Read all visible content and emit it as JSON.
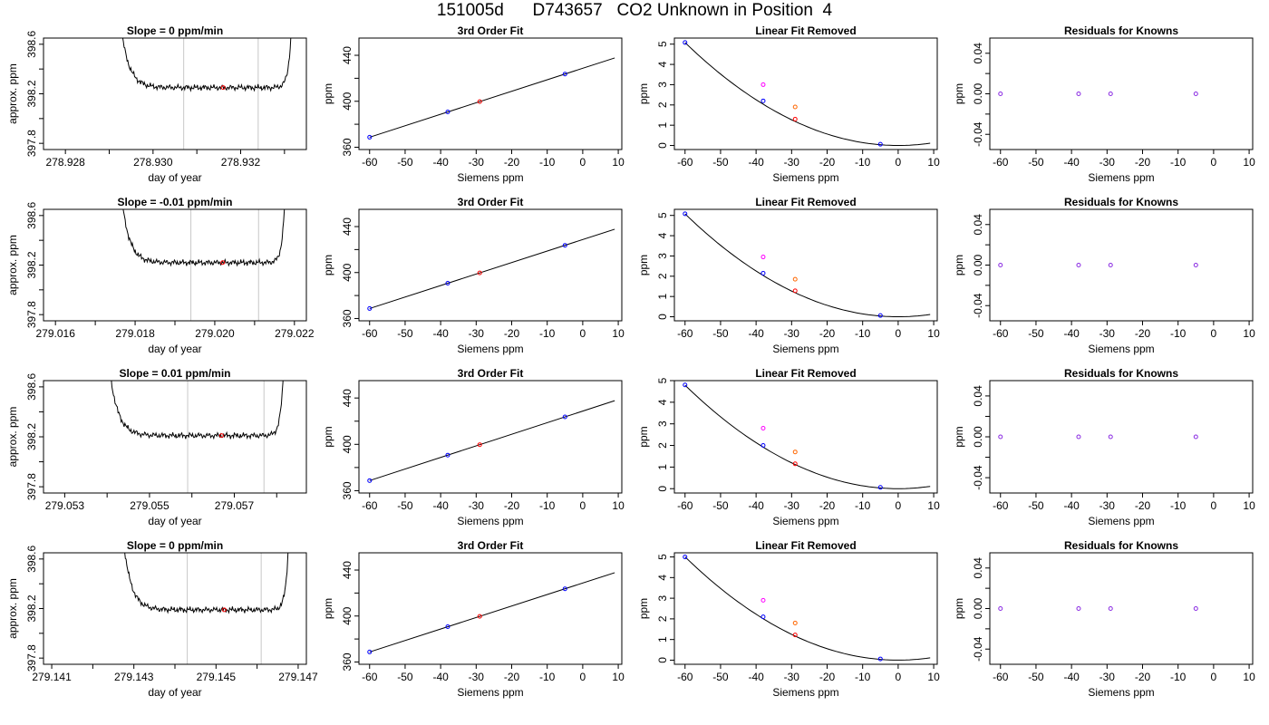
{
  "title": {
    "run": "151005d",
    "tank": "D743657",
    "desc": "CO2 Unknown in Position  4"
  },
  "colors": {
    "trace": "#000000",
    "window": "#c8c8c8",
    "highlight": "#ff0000",
    "standard": "#0000ff",
    "unknown": "#ff0000",
    "raw_unknown": "#ff00ff",
    "raw_known": "#ff6600",
    "residual": "#8a2be2"
  },
  "chart_data": [
    {
      "type": "line",
      "title": "Slope =  0  ppm/min",
      "xlabel": "day of year",
      "ylabel": "approx. ppm",
      "xlim": [
        278.9275,
        278.9335
      ],
      "ylim": [
        397.75,
        398.65
      ],
      "xticks": [
        278.928,
        278.929,
        278.93,
        278.931,
        278.932,
        278.933
      ],
      "xtick_labels": [
        "278.928",
        "",
        "278.930",
        "",
        "278.932",
        ""
      ],
      "yticks": [
        397.8,
        398.0,
        398.2,
        398.4,
        398.6
      ],
      "ytick_labels": [
        "397.8",
        "",
        "398.2",
        "",
        "398.6"
      ],
      "plateau": 398.25,
      "rise": [
        278.9291,
        278.9332
      ],
      "window": [
        278.9307,
        278.9324
      ],
      "highlight": {
        "x": 278.9316,
        "y": 398.25
      }
    },
    {
      "type": "scatter",
      "title": "3rd Order Fit",
      "xlabel": "Siemens ppm",
      "ylabel": "ppm",
      "xlim": [
        -63,
        11
      ],
      "ylim": [
        358,
        455
      ],
      "xticks": [
        -60,
        -50,
        -40,
        -30,
        -20,
        -10,
        0,
        10
      ],
      "yticks": [
        360,
        380,
        400,
        420,
        440
      ],
      "ytick_labels": [
        "360",
        "",
        "400",
        "",
        "440"
      ],
      "fit": {
        "slope": 1.0,
        "intercept": 428.7,
        "x_range": [
          -60,
          9
        ]
      },
      "standards": [
        {
          "x": -60,
          "y": 368.7
        },
        {
          "x": -38,
          "y": 390.7
        },
        {
          "x": -5,
          "y": 423.7
        }
      ],
      "unknown": {
        "x": -29,
        "y": 399.7
      }
    },
    {
      "type": "scatter",
      "title": "Linear Fit Removed",
      "xlabel": "Siemens ppm",
      "ylabel": "ppm",
      "xlim": [
        -63,
        11
      ],
      "ylim": [
        -0.2,
        5.3
      ],
      "xticks": [
        -60,
        -50,
        -40,
        -30,
        -20,
        -10,
        0,
        10
      ],
      "yticks": [
        0,
        1,
        2,
        3,
        4,
        5
      ],
      "curve": {
        "a": 0.00141,
        "x_range": [
          -60,
          9
        ]
      },
      "standards": [
        {
          "x": -60,
          "y": 5.08
        },
        {
          "x": -38,
          "y": 2.2
        },
        {
          "x": -5,
          "y": 0.06
        }
      ],
      "unknown": {
        "x": -29,
        "y": 1.3
      },
      "raw_unknown": {
        "x": -38,
        "y": 3.0
      },
      "raw_known": {
        "x": -29,
        "y": 1.9
      }
    },
    {
      "type": "scatter",
      "title": "Residuals for Knowns",
      "xlabel": "Siemens ppm",
      "ylabel": "ppm",
      "xlim": [
        -63,
        11
      ],
      "ylim": [
        -0.055,
        0.055
      ],
      "xticks": [
        -60,
        -50,
        -40,
        -30,
        -20,
        -10,
        0,
        10
      ],
      "yticks": [
        -0.04,
        -0.02,
        0,
        0.02,
        0.04
      ],
      "ytick_labels": [
        "-0.04",
        "",
        "0.00",
        "",
        "0.04"
      ],
      "points": [
        {
          "x": -60,
          "y": 0
        },
        {
          "x": -38,
          "y": 0
        },
        {
          "x": -29,
          "y": 0
        },
        {
          "x": -5,
          "y": 0
        }
      ]
    },
    {
      "type": "line",
      "title": "Slope =  -0.01  ppm/min",
      "xlabel": "day of year",
      "ylabel": "approx. ppm",
      "xlim": [
        279.0157,
        279.0223
      ],
      "ylim": [
        397.75,
        398.65
      ],
      "xticks": [
        279.016,
        279.017,
        279.018,
        279.019,
        279.02,
        279.021,
        279.022
      ],
      "xtick_labels": [
        "279.016",
        "",
        "279.018",
        "",
        "279.020",
        "",
        "279.022"
      ],
      "yticks": [
        397.8,
        398.0,
        398.2,
        398.4,
        398.6
      ],
      "ytick_labels": [
        "397.8",
        "",
        "398.2",
        "",
        "398.6"
      ],
      "plateau": 398.22,
      "rise": [
        279.0175,
        279.0218
      ],
      "window": [
        279.0194,
        279.0211
      ],
      "highlight": {
        "x": 279.0202,
        "y": 398.22
      }
    },
    {
      "type": "scatter",
      "title": "3rd Order Fit",
      "xlabel": "Siemens ppm",
      "ylabel": "ppm",
      "xlim": [
        -63,
        11
      ],
      "ylim": [
        358,
        455
      ],
      "xticks": [
        -60,
        -50,
        -40,
        -30,
        -20,
        -10,
        0,
        10
      ],
      "yticks": [
        360,
        380,
        400,
        420,
        440
      ],
      "ytick_labels": [
        "360",
        "",
        "400",
        "",
        "440"
      ],
      "fit": {
        "slope": 1.0,
        "intercept": 428.7,
        "x_range": [
          -60,
          9
        ]
      },
      "standards": [
        {
          "x": -60,
          "y": 368.7
        },
        {
          "x": -38,
          "y": 390.7
        },
        {
          "x": -5,
          "y": 423.7
        }
      ],
      "unknown": {
        "x": -29,
        "y": 399.7
      }
    },
    {
      "type": "scatter",
      "title": "Linear Fit Removed",
      "xlabel": "Siemens ppm",
      "ylabel": "ppm",
      "xlim": [
        -63,
        11
      ],
      "ylim": [
        -0.2,
        5.3
      ],
      "xticks": [
        -60,
        -50,
        -40,
        -30,
        -20,
        -10,
        0,
        10
      ],
      "yticks": [
        0,
        1,
        2,
        3,
        4,
        5
      ],
      "curve": {
        "a": 0.00141,
        "x_range": [
          -60,
          9
        ]
      },
      "standards": [
        {
          "x": -60,
          "y": 5.08
        },
        {
          "x": -38,
          "y": 2.15
        },
        {
          "x": -5,
          "y": 0.06
        }
      ],
      "unknown": {
        "x": -29,
        "y": 1.28
      },
      "raw_unknown": {
        "x": -38,
        "y": 2.95
      },
      "raw_known": {
        "x": -29,
        "y": 1.85
      }
    },
    {
      "type": "scatter",
      "title": "Residuals for Knowns",
      "xlabel": "Siemens ppm",
      "ylabel": "ppm",
      "xlim": [
        -63,
        11
      ],
      "ylim": [
        -0.055,
        0.055
      ],
      "xticks": [
        -60,
        -50,
        -40,
        -30,
        -20,
        -10,
        0,
        10
      ],
      "yticks": [
        -0.04,
        -0.02,
        0,
        0.02,
        0.04
      ],
      "ytick_labels": [
        "-0.04",
        "",
        "0.00",
        "",
        "0.04"
      ],
      "points": [
        {
          "x": -60,
          "y": 0
        },
        {
          "x": -38,
          "y": 0
        },
        {
          "x": -29,
          "y": 0
        },
        {
          "x": -5,
          "y": 0
        }
      ]
    },
    {
      "type": "line",
      "title": "Slope =  0.01  ppm/min",
      "xlabel": "day of year",
      "ylabel": "approx. ppm",
      "xlim": [
        279.0525,
        279.0587
      ],
      "ylim": [
        397.75,
        398.65
      ],
      "xticks": [
        279.053,
        279.054,
        279.055,
        279.056,
        279.057,
        279.058
      ],
      "xtick_labels": [
        "279.053",
        "",
        "279.055",
        "",
        "279.057",
        ""
      ],
      "yticks": [
        397.8,
        398.0,
        398.2,
        398.4,
        398.6
      ],
      "ytick_labels": [
        "397.8",
        "",
        "398.2",
        "",
        "398.6"
      ],
      "plateau": 398.21,
      "rise": [
        279.0539,
        279.0582
      ],
      "window": [
        279.0559,
        279.0577
      ],
      "highlight": {
        "x": 279.0567,
        "y": 398.21
      }
    },
    {
      "type": "scatter",
      "title": "3rd Order Fit",
      "xlabel": "Siemens ppm",
      "ylabel": "ppm",
      "xlim": [
        -63,
        11
      ],
      "ylim": [
        358,
        455
      ],
      "xticks": [
        -60,
        -50,
        -40,
        -30,
        -20,
        -10,
        0,
        10
      ],
      "yticks": [
        360,
        380,
        400,
        420,
        440
      ],
      "ytick_labels": [
        "360",
        "",
        "400",
        "",
        "440"
      ],
      "fit": {
        "slope": 1.0,
        "intercept": 428.7,
        "x_range": [
          -60,
          9
        ]
      },
      "standards": [
        {
          "x": -60,
          "y": 368.7
        },
        {
          "x": -38,
          "y": 390.7
        },
        {
          "x": -5,
          "y": 423.7
        }
      ],
      "unknown": {
        "x": -29,
        "y": 399.7
      }
    },
    {
      "type": "scatter",
      "title": "Linear Fit Removed",
      "xlabel": "Siemens ppm",
      "ylabel": "ppm",
      "xlim": [
        -63,
        11
      ],
      "ylim": [
        -0.2,
        5.0
      ],
      "xticks": [
        -60,
        -50,
        -40,
        -30,
        -20,
        -10,
        0,
        10
      ],
      "yticks": [
        0,
        1,
        2,
        3,
        4,
        5
      ],
      "curve": {
        "a": 0.00133,
        "x_range": [
          -60,
          9
        ]
      },
      "standards": [
        {
          "x": -60,
          "y": 4.8
        },
        {
          "x": -38,
          "y": 2.0
        },
        {
          "x": -5,
          "y": 0.06
        }
      ],
      "unknown": {
        "x": -29,
        "y": 1.15
      },
      "raw_unknown": {
        "x": -38,
        "y": 2.8
      },
      "raw_known": {
        "x": -29,
        "y": 1.7
      }
    },
    {
      "type": "scatter",
      "title": "Residuals for Knowns",
      "xlabel": "Siemens ppm",
      "ylabel": "ppm",
      "xlim": [
        -63,
        11
      ],
      "ylim": [
        -0.055,
        0.055
      ],
      "xticks": [
        -60,
        -50,
        -40,
        -30,
        -20,
        -10,
        0,
        10
      ],
      "yticks": [
        -0.04,
        -0.02,
        0,
        0.02,
        0.04
      ],
      "ytick_labels": [
        "-0.04",
        "",
        "0.00",
        "",
        "0.04"
      ],
      "points": [
        {
          "x": -60,
          "y": 0
        },
        {
          "x": -38,
          "y": 0
        },
        {
          "x": -29,
          "y": 0
        },
        {
          "x": -5,
          "y": 0
        }
      ]
    },
    {
      "type": "line",
      "title": "Slope =  0  ppm/min",
      "xlabel": "day of year",
      "ylabel": "approx. ppm",
      "xlim": [
        279.1408,
        279.1472
      ],
      "ylim": [
        397.75,
        398.65
      ],
      "xticks": [
        279.141,
        279.142,
        279.143,
        279.144,
        279.145,
        279.146,
        279.147
      ],
      "xtick_labels": [
        "279.141",
        "",
        "279.143",
        "",
        "279.145",
        "",
        "279.147"
      ],
      "yticks": [
        397.8,
        398.0,
        398.2,
        398.4,
        398.6
      ],
      "ytick_labels": [
        "397.8",
        "",
        "398.2",
        "",
        "398.6"
      ],
      "plateau": 398.19,
      "rise": [
        279.1426,
        279.1468
      ],
      "window": [
        279.1443,
        279.1461
      ],
      "highlight": {
        "x": 279.1452,
        "y": 398.19
      }
    },
    {
      "type": "scatter",
      "title": "3rd Order Fit",
      "xlabel": "Siemens ppm",
      "ylabel": "ppm",
      "xlim": [
        -63,
        11
      ],
      "ylim": [
        358,
        455
      ],
      "xticks": [
        -60,
        -50,
        -40,
        -30,
        -20,
        -10,
        0,
        10
      ],
      "yticks": [
        360,
        380,
        400,
        420,
        440
      ],
      "ytick_labels": [
        "360",
        "",
        "400",
        "",
        "440"
      ],
      "fit": {
        "slope": 1.0,
        "intercept": 428.7,
        "x_range": [
          -60,
          9
        ]
      },
      "standards": [
        {
          "x": -60,
          "y": 368.7
        },
        {
          "x": -38,
          "y": 390.7
        },
        {
          "x": -5,
          "y": 423.7
        }
      ],
      "unknown": {
        "x": -29,
        "y": 399.7
      }
    },
    {
      "type": "scatter",
      "title": "Linear Fit Removed",
      "xlabel": "Siemens ppm",
      "ylabel": "ppm",
      "xlim": [
        -63,
        11
      ],
      "ylim": [
        -0.2,
        5.2
      ],
      "xticks": [
        -60,
        -50,
        -40,
        -30,
        -20,
        -10,
        0,
        10
      ],
      "yticks": [
        0,
        1,
        2,
        3,
        4,
        5
      ],
      "curve": {
        "a": 0.00139,
        "x_range": [
          -60,
          9
        ]
      },
      "standards": [
        {
          "x": -60,
          "y": 5.0
        },
        {
          "x": -38,
          "y": 2.1
        },
        {
          "x": -5,
          "y": 0.06
        }
      ],
      "unknown": {
        "x": -29,
        "y": 1.22
      },
      "raw_unknown": {
        "x": -38,
        "y": 2.9
      },
      "raw_known": {
        "x": -29,
        "y": 1.8
      }
    },
    {
      "type": "scatter",
      "title": "Residuals for Knowns",
      "xlabel": "Siemens ppm",
      "ylabel": "ppm",
      "xlim": [
        -63,
        11
      ],
      "ylim": [
        -0.055,
        0.055
      ],
      "xticks": [
        -60,
        -50,
        -40,
        -30,
        -20,
        -10,
        0,
        10
      ],
      "yticks": [
        -0.04,
        -0.02,
        0,
        0.02,
        0.04
      ],
      "ytick_labels": [
        "-0.04",
        "",
        "0.00",
        "",
        "0.04"
      ],
      "points": [
        {
          "x": -60,
          "y": 0
        },
        {
          "x": -38,
          "y": 0
        },
        {
          "x": -29,
          "y": 0
        },
        {
          "x": -5,
          "y": 0
        }
      ]
    }
  ]
}
